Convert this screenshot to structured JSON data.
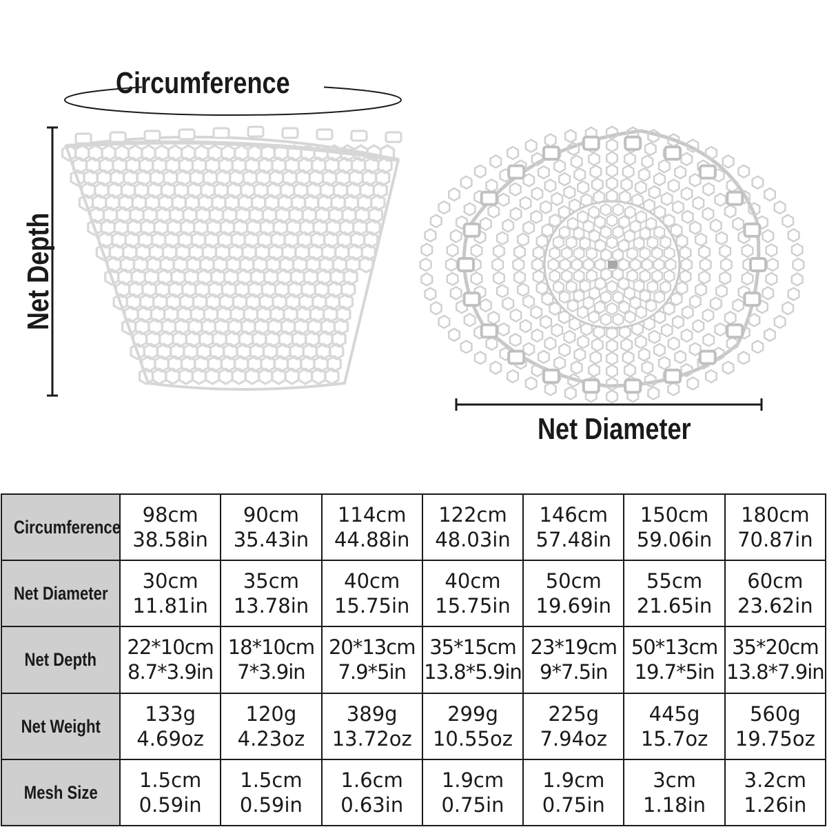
{
  "labels": {
    "circumference": "Circumference",
    "net_depth": "Net Depth",
    "net_diameter": "Net Diameter"
  },
  "table": {
    "rows": [
      {
        "header": "Circumference",
        "cells": [
          [
            "98cm",
            "38.58in"
          ],
          [
            "90cm",
            "35.43in"
          ],
          [
            "114cm",
            "44.88in"
          ],
          [
            "122cm",
            "48.03in"
          ],
          [
            "146cm",
            "57.48in"
          ],
          [
            "150cm",
            "59.06in"
          ],
          [
            "180cm",
            "70.87in"
          ]
        ]
      },
      {
        "header": "Net Diameter",
        "cells": [
          [
            "30cm",
            "11.81in"
          ],
          [
            "35cm",
            "13.78in"
          ],
          [
            "40cm",
            "15.75in"
          ],
          [
            "40cm",
            "15.75in"
          ],
          [
            "50cm",
            "19.69in"
          ],
          [
            "55cm",
            "21.65in"
          ],
          [
            "60cm",
            "23.62in"
          ]
        ]
      },
      {
        "header": "Net Depth",
        "cells": [
          [
            "22*10cm",
            "8.7*3.9in"
          ],
          [
            "18*10cm",
            "7*3.9in"
          ],
          [
            "20*13cm",
            "7.9*5in"
          ],
          [
            "35*15cm",
            "13.8*5.9in"
          ],
          [
            "23*19cm",
            "9*7.5in"
          ],
          [
            "50*13cm",
            "19.7*5in"
          ],
          [
            "35*20cm",
            "13.8*7.9in"
          ]
        ]
      },
      {
        "header": "Net Weight",
        "cells": [
          [
            "133g",
            "4.69oz"
          ],
          [
            "120g",
            "4.23oz"
          ],
          [
            "389g",
            "13.72oz"
          ],
          [
            "299g",
            "10.55oz"
          ],
          [
            "225g",
            "7.94oz"
          ],
          [
            "445g",
            "15.7oz"
          ],
          [
            "560g",
            "19.75oz"
          ]
        ]
      },
      {
        "header": "Mesh Size",
        "cells": [
          [
            "1.5cm",
            "0.59in"
          ],
          [
            "1.5cm",
            "0.59in"
          ],
          [
            "1.6cm",
            "0.63in"
          ],
          [
            "1.9cm",
            "0.75in"
          ],
          [
            "1.9cm",
            "0.75in"
          ],
          [
            "3cm",
            "1.18in"
          ],
          [
            "3.2cm",
            "1.26in"
          ]
        ]
      }
    ]
  },
  "colors": {
    "header_bg": "#cfcfcf",
    "line": "#1a1a1a",
    "mesh": "#d6d6d6"
  }
}
